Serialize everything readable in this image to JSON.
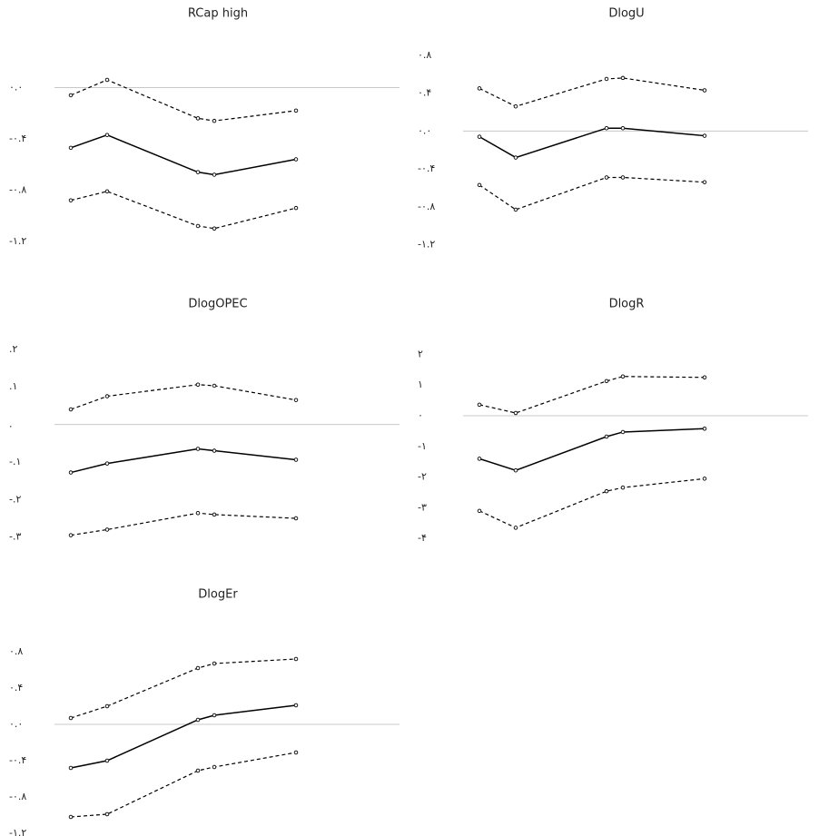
{
  "chart_data": [
    {
      "type": "line",
      "title": "RCap high",
      "x": [
        1,
        2,
        4.5,
        4.95,
        7.2
      ],
      "xlim": [
        0,
        10
      ],
      "ylim": [
        -1.3,
        0.4
      ],
      "yticks": [
        {
          "value": 0,
          "label": "۰.۰"
        },
        {
          "value": -0.4,
          "label": "-۰.۴"
        },
        {
          "value": -0.8,
          "label": "-۰.۸"
        },
        {
          "value": -1.2,
          "label": "-۱.۲"
        }
      ],
      "series": [
        {
          "color": "#000000",
          "style": "dashed",
          "values": [
            -0.06,
            0.06,
            -0.24,
            -0.26,
            -0.18
          ]
        },
        {
          "color": "#000000",
          "style": "solid",
          "values": [
            -0.47,
            -0.37,
            -0.66,
            -0.68,
            -0.56
          ]
        },
        {
          "color": "#000000",
          "style": "dashed",
          "values": [
            -0.88,
            -0.81,
            -1.08,
            -1.1,
            -0.94
          ]
        }
      ]
    },
    {
      "type": "line",
      "title": "DlogU",
      "x": [
        1,
        2,
        4.5,
        4.95,
        7.2
      ],
      "xlim": [
        0,
        10
      ],
      "ylim": [
        -1.3,
        1.0
      ],
      "yticks": [
        {
          "value": 0.8,
          "label": "۰.۸"
        },
        {
          "value": 0.4,
          "label": "۰.۴"
        },
        {
          "value": 0,
          "label": "۰.۰"
        },
        {
          "value": -0.4,
          "label": "-۰.۴"
        },
        {
          "value": -0.8,
          "label": "-۰.۸"
        },
        {
          "value": -1.2,
          "label": "-۱.۲"
        }
      ],
      "series": [
        {
          "color": "#000000",
          "style": "dashed",
          "values": [
            0.45,
            0.26,
            0.55,
            0.56,
            0.43
          ]
        },
        {
          "color": "#000000",
          "style": "solid",
          "values": [
            -0.06,
            -0.28,
            0.03,
            0.03,
            -0.05
          ]
        },
        {
          "color": "#000000",
          "style": "dashed",
          "values": [
            -0.57,
            -0.83,
            -0.49,
            -0.49,
            -0.54
          ]
        }
      ]
    },
    {
      "type": "line",
      "title": "DlogOPEC",
      "x": [
        1,
        2,
        4.5,
        4.95,
        7.2
      ],
      "xlim": [
        0,
        10
      ],
      "ylim": [
        -0.32,
        0.26
      ],
      "yticks": [
        {
          "value": 0.2,
          "label": ".۲"
        },
        {
          "value": 0.1,
          "label": ".۱"
        },
        {
          "value": 0,
          "label": "."
        },
        {
          "value": -0.1,
          "label": "-.۱"
        },
        {
          "value": -0.2,
          "label": "-.۲"
        },
        {
          "value": -0.3,
          "label": "-.۳"
        }
      ],
      "series": [
        {
          "color": "#000000",
          "style": "dashed",
          "values": [
            0.04,
            0.075,
            0.106,
            0.103,
            0.065
          ]
        },
        {
          "color": "#000000",
          "style": "solid",
          "values": [
            -0.128,
            -0.104,
            -0.065,
            -0.07,
            -0.094
          ]
        },
        {
          "color": "#000000",
          "style": "dashed",
          "values": [
            -0.295,
            -0.28,
            -0.236,
            -0.24,
            -0.25
          ]
        }
      ]
    },
    {
      "type": "line",
      "title": "DlogR",
      "x": [
        1,
        2,
        4.5,
        4.95,
        7.2
      ],
      "xlim": [
        0,
        10
      ],
      "ylim": [
        -4.2,
        2.9
      ],
      "yticks": [
        {
          "value": 2,
          "label": "۲"
        },
        {
          "value": 1,
          "label": "۱"
        },
        {
          "value": 0,
          "label": "۰"
        },
        {
          "value": -1,
          "label": "-۱"
        },
        {
          "value": -2,
          "label": "-۲"
        },
        {
          "value": -3,
          "label": "-۳"
        },
        {
          "value": -4,
          "label": "-۴"
        }
      ],
      "series": [
        {
          "color": "#000000",
          "style": "dashed",
          "values": [
            0.36,
            0.09,
            1.13,
            1.28,
            1.25
          ]
        },
        {
          "color": "#000000",
          "style": "solid",
          "values": [
            -1.4,
            -1.78,
            -0.68,
            -0.53,
            -0.42
          ]
        },
        {
          "color": "#000000",
          "style": "dashed",
          "values": [
            -3.1,
            -3.65,
            -2.46,
            -2.34,
            -2.05
          ]
        }
      ]
    },
    {
      "type": "line",
      "title": "DlogEr",
      "x": [
        1,
        2,
        4.5,
        4.95,
        7.2
      ],
      "xlim": [
        0,
        10
      ],
      "ylim": [
        -1.22,
        1.18
      ],
      "yticks": [
        {
          "value": 0.8,
          "label": "۰.۸"
        },
        {
          "value": 0.4,
          "label": "۰.۴"
        },
        {
          "value": 0,
          "label": "۰.۰"
        },
        {
          "value": -0.4,
          "label": "-۰.۴"
        },
        {
          "value": -0.8,
          "label": "-۰.۸"
        },
        {
          "value": -1.2,
          "label": "-۱.۲"
        }
      ],
      "series": [
        {
          "color": "#000000",
          "style": "dashed",
          "values": [
            0.07,
            0.2,
            0.62,
            0.67,
            0.72
          ]
        },
        {
          "color": "#000000",
          "style": "solid",
          "values": [
            -0.48,
            -0.4,
            0.05,
            0.1,
            0.21
          ]
        },
        {
          "color": "#000000",
          "style": "dashed",
          "values": [
            -1.02,
            -0.99,
            -0.51,
            -0.47,
            -0.31
          ]
        }
      ]
    }
  ]
}
